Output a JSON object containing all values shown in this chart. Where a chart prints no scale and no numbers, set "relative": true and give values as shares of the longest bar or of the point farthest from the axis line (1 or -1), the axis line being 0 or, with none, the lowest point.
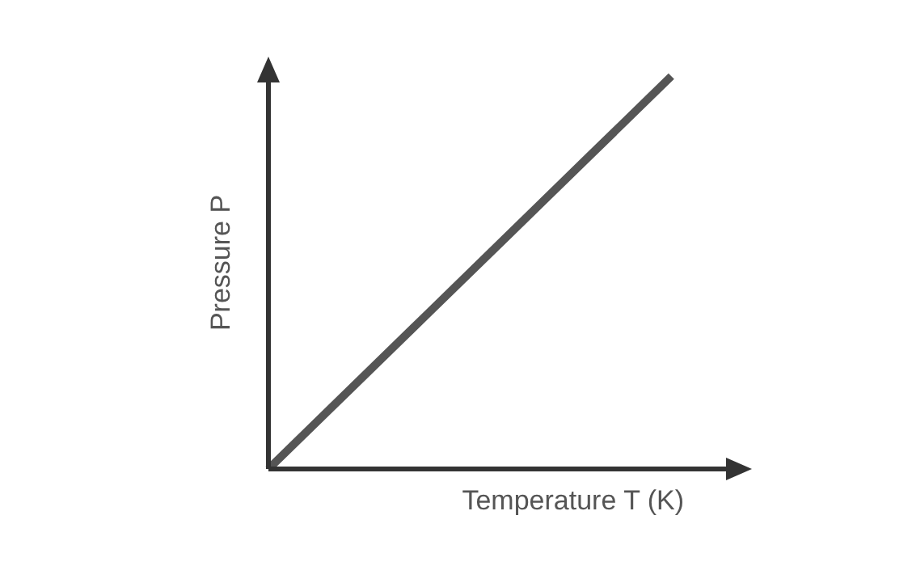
{
  "chart_data": {
    "type": "line",
    "relative": true,
    "xlabel": "Temperature T (K)",
    "ylabel": "Pressure P",
    "categories": [
      null,
      null,
      null,
      null,
      null,
      null,
      null
    ],
    "series": [
      {
        "color": "#555555",
        "values": [
          0,
          0.2,
          0.4,
          0.6,
          0.8,
          1,
          null
        ]
      }
    ],
    "marker": "none",
    "line_style": "solid",
    "legend": false
  }
}
